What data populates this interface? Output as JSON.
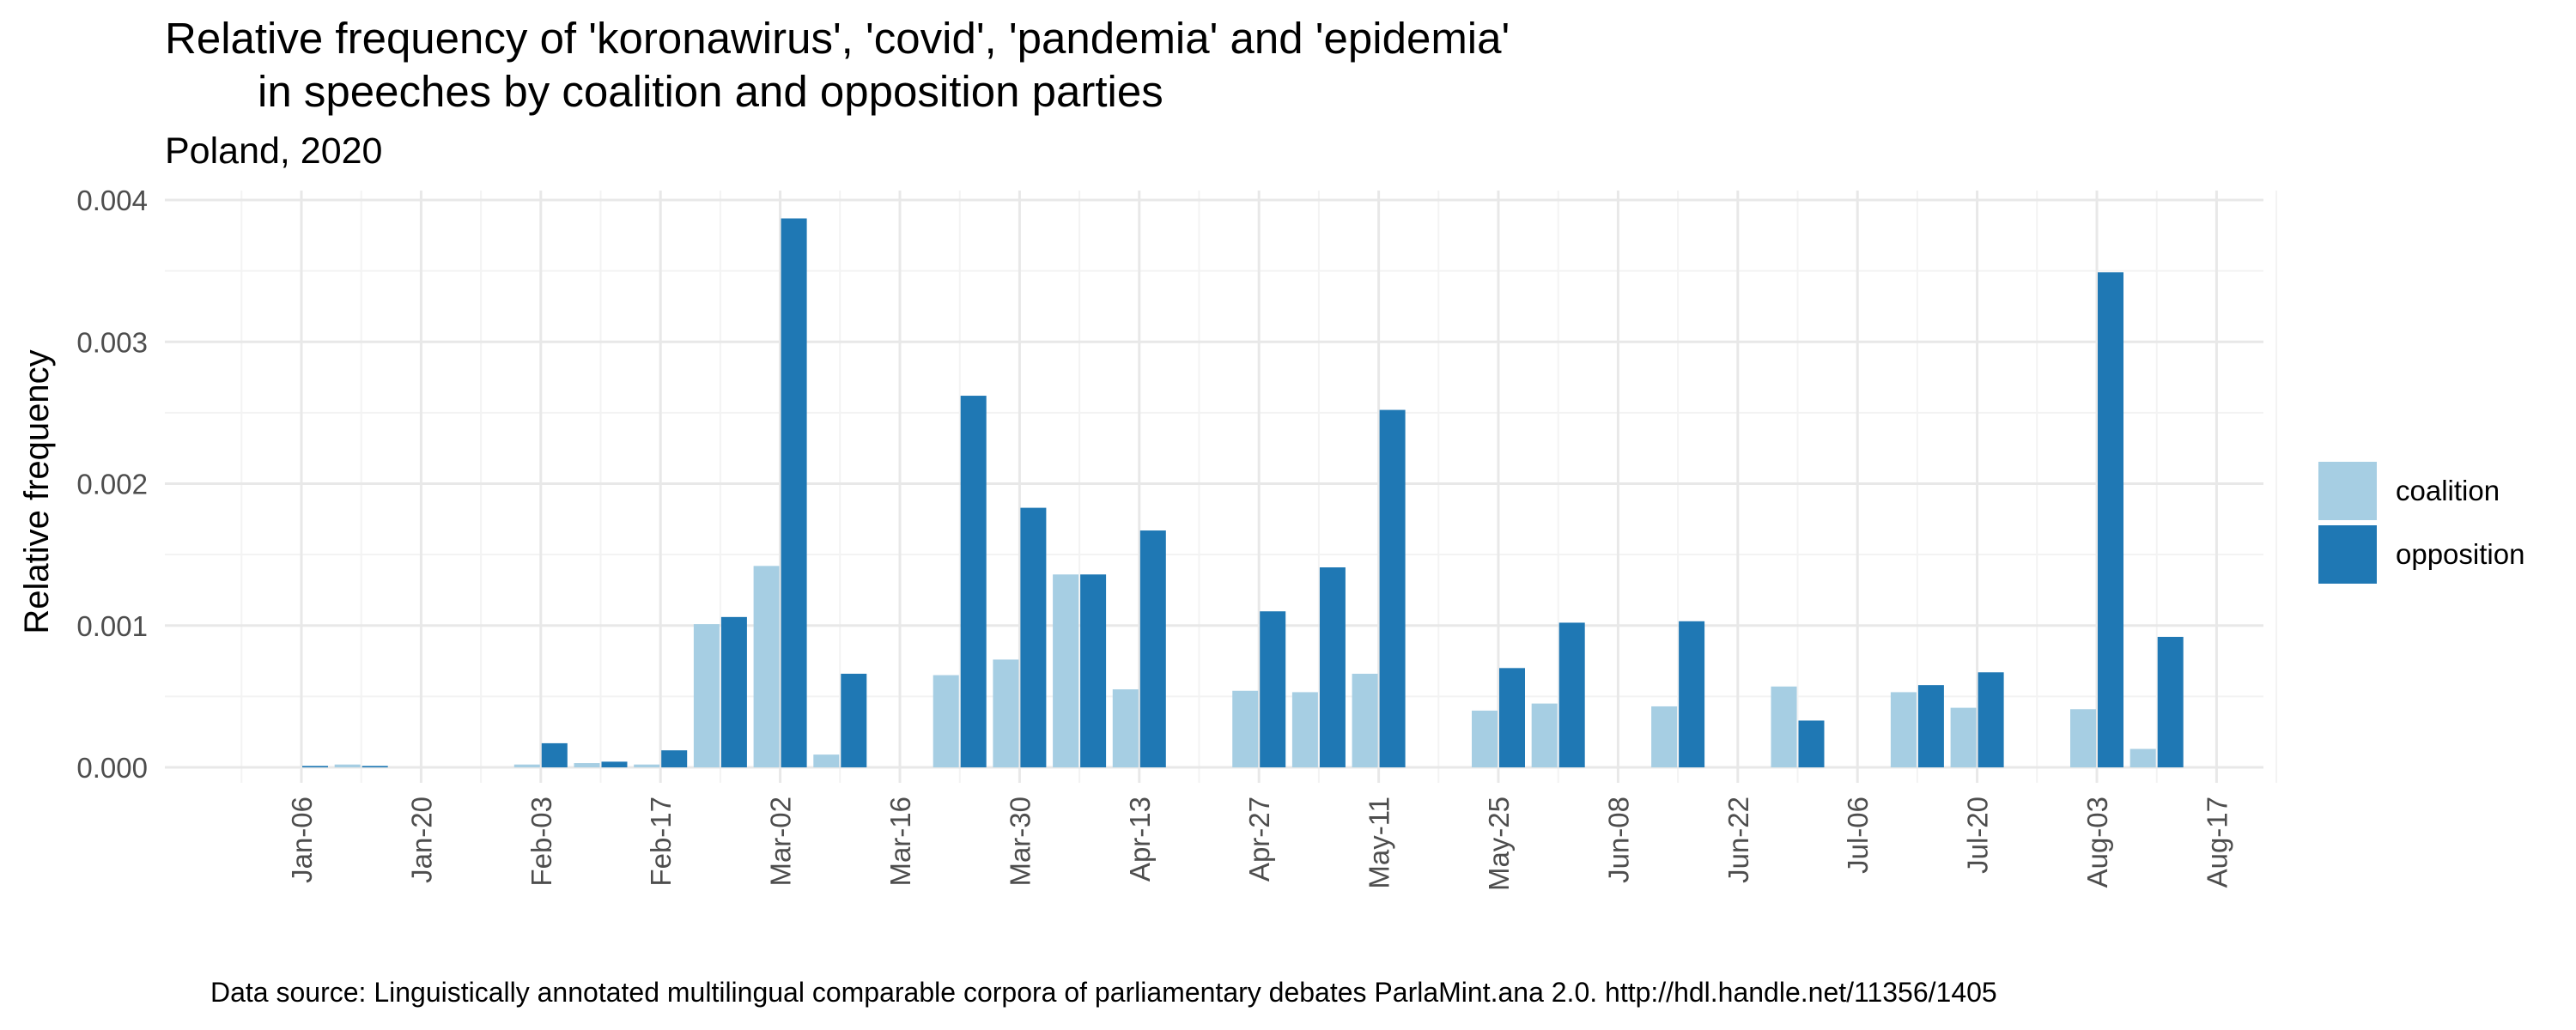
{
  "chart_data": {
    "type": "bar",
    "title_line1": "Relative frequency of 'koronawirus', 'covid', 'pandemia' and 'epidemia'",
    "title_line2": "in speeches by coalition and opposition parties",
    "subtitle": "Poland, 2020",
    "ylabel": "Relative frequency",
    "xlabel": "",
    "caption": "Data source: Linguistically annotated multilingual comparable corpora of parliamentary debates ParlaMint.ana 2.0. http://hdl.handle.net/11356/1405",
    "ylim": [
      0,
      0.004
    ],
    "y_ticks": [
      "0.000",
      "0.001",
      "0.002",
      "0.003",
      "0.004"
    ],
    "x_ticks": [
      "Jan-06",
      "Jan-20",
      "Feb-03",
      "Feb-17",
      "Mar-02",
      "Mar-16",
      "Mar-30",
      "Apr-13",
      "Apr-27",
      "May-11",
      "May-25",
      "Jun-08",
      "Jun-22",
      "Jul-06",
      "Jul-20",
      "Aug-03",
      "Aug-17"
    ],
    "grid": true,
    "legend_position": "right",
    "colors": {
      "coalition": "#a6cee3",
      "opposition": "#1f78b4"
    },
    "weeks": [
      "Jan-06",
      "Jan-13",
      "Jan-20",
      "Jan-27",
      "Feb-03",
      "Feb-10",
      "Feb-17",
      "Feb-24",
      "Mar-02",
      "Mar-09",
      "Mar-16",
      "Mar-23",
      "Mar-30",
      "Apr-06",
      "Apr-13",
      "Apr-20",
      "Apr-27",
      "May-04",
      "May-11",
      "May-18",
      "May-25",
      "Jun-01",
      "Jun-08",
      "Jun-15",
      "Jun-22",
      "Jun-29",
      "Jul-06",
      "Jul-13",
      "Jul-20",
      "Jul-27",
      "Aug-03",
      "Aug-10"
    ],
    "series": [
      {
        "name": "coalition",
        "values": [
          0,
          2e-05,
          0,
          0,
          2e-05,
          3e-05,
          2e-05,
          0.00101,
          0.00142,
          9e-05,
          0,
          0.00065,
          0.00076,
          0.00136,
          0.00055,
          0,
          0.00054,
          0.00053,
          0.00066,
          0,
          0.0004,
          0.00045,
          0,
          0.00043,
          0,
          0.00057,
          0,
          0.00053,
          0.00042,
          0,
          0.00041,
          0.00013
        ]
      },
      {
        "name": "opposition",
        "values": [
          1e-05,
          1e-05,
          0,
          0,
          0.00017,
          4e-05,
          0.00012,
          0.00106,
          0.00387,
          0.00066,
          0,
          0.00262,
          0.00183,
          0.00136,
          0.00167,
          0,
          0.0011,
          0.00141,
          0.00252,
          0,
          0.0007,
          0.00102,
          0,
          0.00103,
          0,
          0.00033,
          0,
          0.00058,
          0.00067,
          0,
          0.00349,
          0.00092
        ]
      }
    ]
  }
}
